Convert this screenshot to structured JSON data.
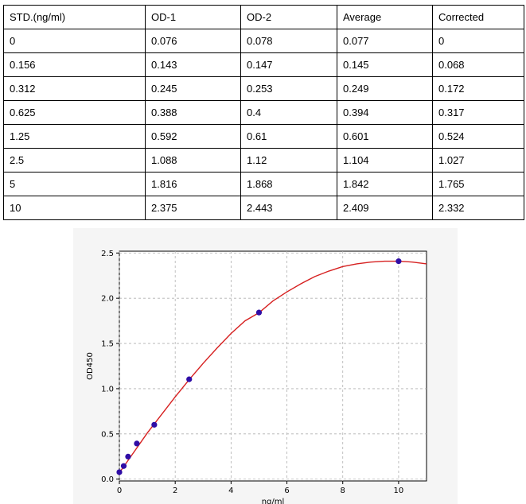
{
  "table": {
    "headers": [
      "STD.(ng/ml)",
      "OD-1",
      "OD-2",
      "Average",
      "Corrected"
    ],
    "rows": [
      [
        "0",
        "0.076",
        "0.078",
        "0.077",
        "0"
      ],
      [
        "0.156",
        "0.143",
        "0.147",
        "0.145",
        "0.068"
      ],
      [
        "0.312",
        "0.245",
        "0.253",
        "0.249",
        "0.172"
      ],
      [
        "0.625",
        "0.388",
        "0.4",
        "0.394",
        "0.317"
      ],
      [
        "1.25",
        "0.592",
        "0.61",
        "0.601",
        "0.524"
      ],
      [
        "2.5",
        "1.088",
        "1.12",
        "1.104",
        "1.027"
      ],
      [
        "5",
        "1.816",
        "1.868",
        "1.842",
        "1.765"
      ],
      [
        "10",
        "2.375",
        "2.443",
        "2.409",
        "2.332"
      ]
    ]
  },
  "chart_data": {
    "type": "scatter",
    "title": "",
    "xlabel": "ng/ml",
    "ylabel": "OD450",
    "xlim": [
      0,
      11
    ],
    "ylim": [
      -0.02,
      2.52
    ],
    "xticks": [
      0,
      2,
      4,
      6,
      8,
      10
    ],
    "yticks": [
      0.0,
      0.5,
      1.0,
      1.5,
      2.0,
      2.5
    ],
    "ytick_labels": [
      "0.0",
      "0.5",
      "1.0",
      "1.5",
      "2.0",
      "2.5"
    ],
    "grid": true,
    "points": {
      "x": [
        0,
        0.156,
        0.312,
        0.625,
        1.25,
        2.5,
        5,
        10
      ],
      "y": [
        0.077,
        0.145,
        0.249,
        0.394,
        0.601,
        1.104,
        1.842,
        2.409
      ],
      "color": "#2f0da6"
    },
    "fit_curve": {
      "x": [
        0,
        0.5,
        1,
        1.5,
        2,
        2.5,
        3,
        3.5,
        4,
        4.5,
        5,
        5.5,
        6,
        6.5,
        7,
        7.5,
        8,
        8.5,
        9,
        9.5,
        10,
        10.5,
        11
      ],
      "y": [
        0.07,
        0.29,
        0.51,
        0.71,
        0.91,
        1.1,
        1.28,
        1.45,
        1.61,
        1.75,
        1.84,
        1.97,
        2.07,
        2.16,
        2.24,
        2.3,
        2.35,
        2.38,
        2.4,
        2.41,
        2.41,
        2.4,
        2.38
      ],
      "color": "#d62020"
    }
  }
}
